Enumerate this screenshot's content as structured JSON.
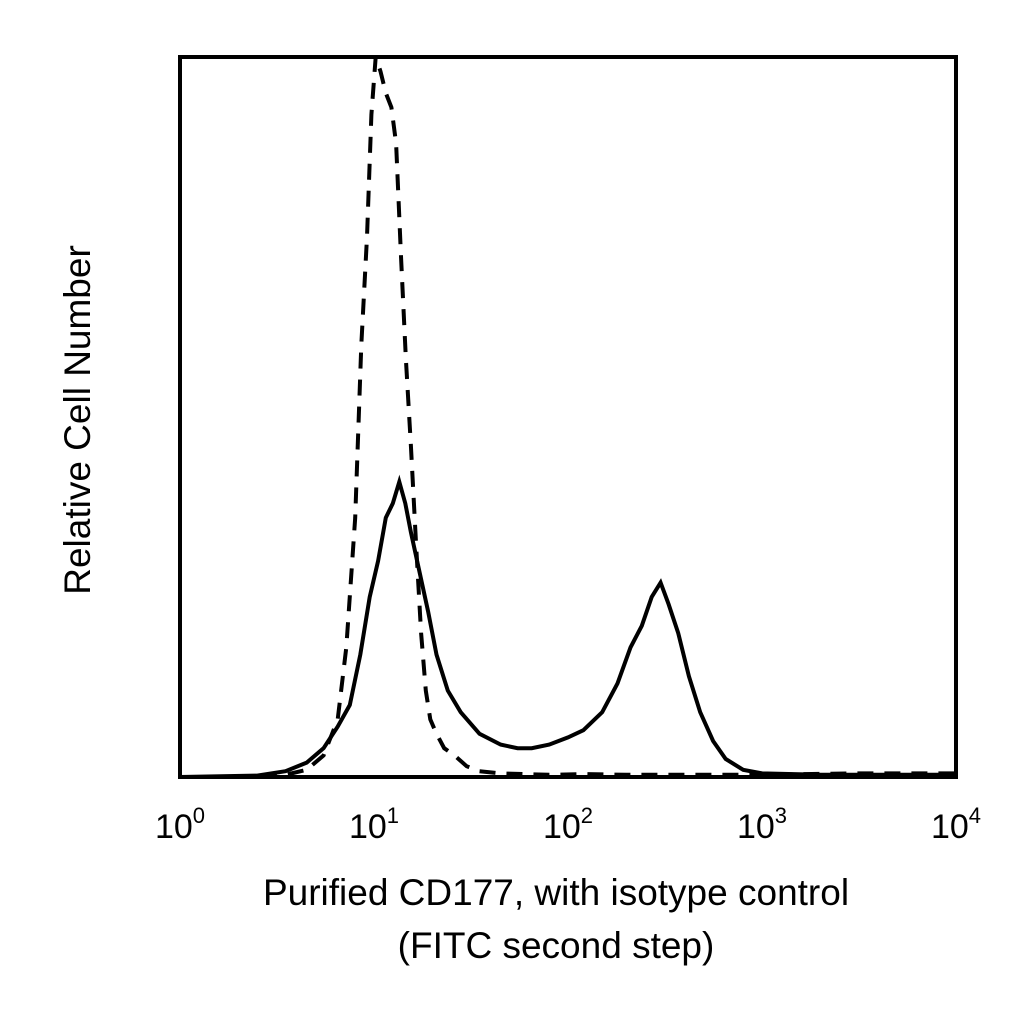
{
  "chart_data": {
    "type": "line",
    "title": "",
    "xlabel": "Purified CD177, with isotype control",
    "xlabel_line2": "(FITC second step)",
    "ylabel": "Relative Cell Number",
    "x_scale": "log",
    "xlim": [
      1,
      10000
    ],
    "ylim": [
      0,
      100
    ],
    "x_ticks": [
      {
        "base": "10",
        "exp": "0",
        "value": 1
      },
      {
        "base": "10",
        "exp": "1",
        "value": 10
      },
      {
        "base": "10",
        "exp": "2",
        "value": 100
      },
      {
        "base": "10",
        "exp": "3",
        "value": 1000
      },
      {
        "base": "10",
        "exp": "4",
        "value": 10000
      }
    ],
    "grid": false,
    "legend": "none",
    "series": [
      {
        "style": "dashed",
        "color": "#000000",
        "x": [
          1,
          2.5,
          3.5,
          4.5,
          5.5,
          6.5,
          7.2,
          8.0,
          8.6,
          9.2,
          9.7,
          10.2,
          10.8,
          11.5,
          12.3,
          13.0,
          13.8,
          14.6,
          15.5,
          16.5,
          17.5,
          18.5,
          19.5,
          21,
          23,
          26,
          30,
          35,
          45,
          60,
          80,
          120,
          200,
          400,
          1000,
          3000,
          10000
        ],
        "y": [
          0,
          0,
          0.3,
          1,
          3,
          8,
          18,
          36,
          60,
          75,
          92,
          100,
          98,
          95,
          93,
          88,
          72,
          58,
          46,
          32,
          20,
          12,
          8,
          6,
          4,
          3,
          1.5,
          0.8,
          0.5,
          0.4,
          0.3,
          0.4,
          0.3,
          0.3,
          0.3,
          0.5,
          0.5
        ]
      },
      {
        "style": "solid",
        "color": "#000000",
        "x": [
          1,
          2.5,
          3.5,
          4.5,
          5.5,
          6.5,
          7.5,
          8.5,
          9.5,
          10.5,
          11.5,
          12.5,
          13.5,
          14.5,
          15.5,
          17,
          19,
          21,
          24,
          28,
          35,
          45,
          55,
          65,
          80,
          100,
          120,
          150,
          180,
          210,
          240,
          270,
          300,
          330,
          370,
          420,
          480,
          560,
          650,
          800,
          1000,
          2000,
          5000,
          10000
        ],
        "y": [
          0,
          0.2,
          0.8,
          2,
          4,
          7,
          10,
          17,
          25,
          30,
          36,
          38,
          41,
          38,
          34,
          29,
          23,
          17,
          12,
          9,
          6,
          4.5,
          4,
          4,
          4.5,
          5.5,
          6.5,
          9,
          13,
          18,
          21,
          25,
          27,
          24,
          20,
          14,
          9,
          5,
          2.5,
          1,
          0.5,
          0.3,
          0.3,
          0.3
        ]
      }
    ]
  }
}
